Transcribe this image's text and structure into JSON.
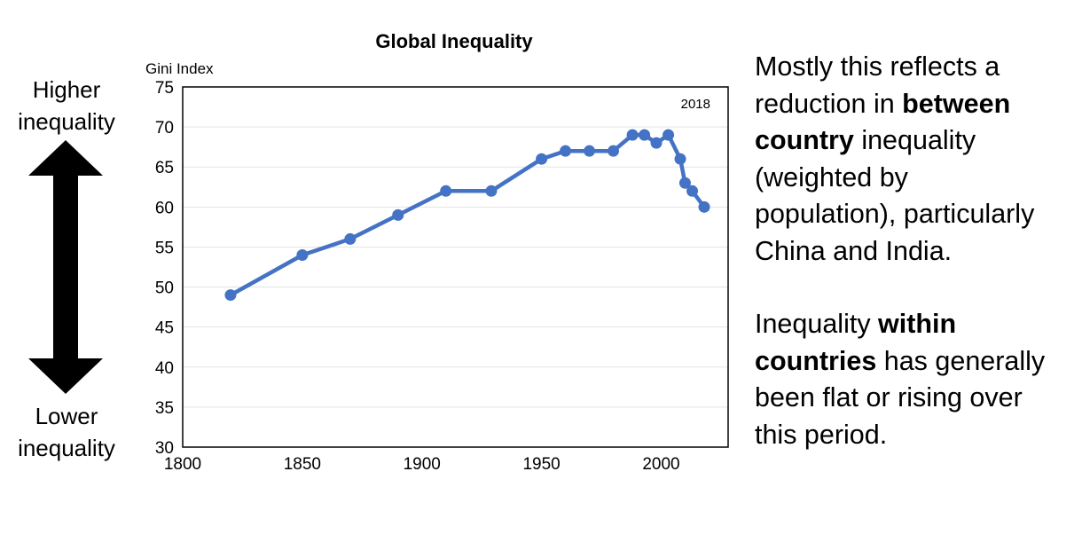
{
  "labels": {
    "higher_line1": "Higher",
    "higher_line2": "inequality",
    "lower_line1": "Lower",
    "lower_line2": "inequality"
  },
  "commentary": {
    "p1_a": "Mostly this reflects a",
    "p1_b": "reduction in ",
    "p1_c": "between",
    "p1_d": "country",
    "p1_e": " inequality",
    "p1_f": "(weighted by",
    "p1_g": "population), particularly",
    "p1_h": "China and India.",
    "p2_a": "Inequality ",
    "p2_b": "within",
    "p2_c": "countries",
    "p2_d": " has generally",
    "p2_e": "been flat or rising over",
    "p2_f": "this period."
  },
  "colors": {
    "series": "#4472C4",
    "arrow": "#000000"
  },
  "icons": {
    "arrow": "double-headed-vertical-arrow"
  },
  "chart_data": {
    "type": "line",
    "title": "Global Inequality",
    "ylabel": "Gini Index",
    "xlabel": "",
    "annotation": "2018",
    "xlim": [
      1800,
      2028
    ],
    "ylim": [
      30,
      75
    ],
    "xticks": [
      1800,
      1850,
      1900,
      1950,
      2000
    ],
    "yticks": [
      30,
      35,
      40,
      45,
      50,
      55,
      60,
      65,
      70,
      75
    ],
    "grid": true,
    "series": [
      {
        "x": [
          1820,
          1850,
          1870,
          1890,
          1910,
          1929,
          1950,
          1960,
          1970,
          1980,
          1988,
          1993,
          1998,
          2003,
          2008,
          2010,
          2013,
          2018
        ],
        "y": [
          49,
          54,
          56,
          59,
          62,
          62,
          66,
          67,
          67,
          67,
          69,
          69,
          68,
          69,
          66,
          63,
          62,
          60
        ]
      }
    ]
  }
}
